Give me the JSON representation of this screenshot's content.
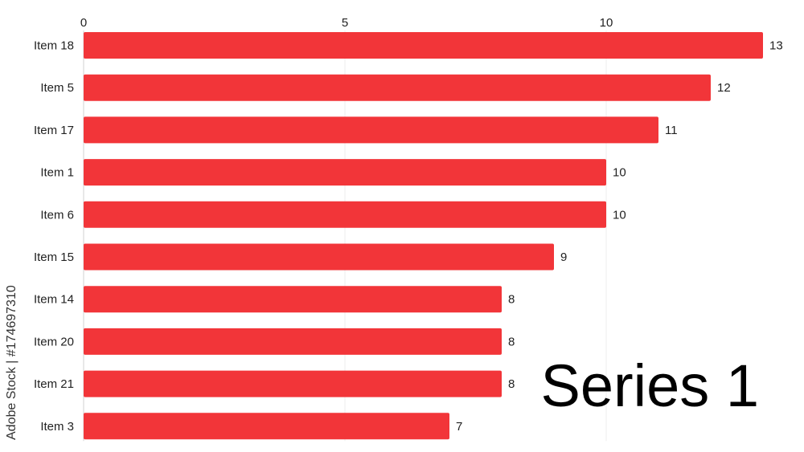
{
  "chart_data": {
    "type": "bar",
    "orientation": "horizontal",
    "categories": [
      "Item 18",
      "Item 5",
      "Item 17",
      "Item 1",
      "Item 6",
      "Item 15",
      "Item 14",
      "Item 20",
      "Item 21",
      "Item 3"
    ],
    "values": [
      13,
      12,
      11,
      10,
      10,
      9,
      8,
      8,
      8,
      7
    ],
    "xticks": [
      0,
      5,
      10
    ],
    "xlim": [
      0,
      13
    ],
    "xaxis_position": "top",
    "grid": true,
    "series_label": "Series 1",
    "bar_color": "#f23539"
  },
  "watermark": "Adobe Stock | #174697310"
}
